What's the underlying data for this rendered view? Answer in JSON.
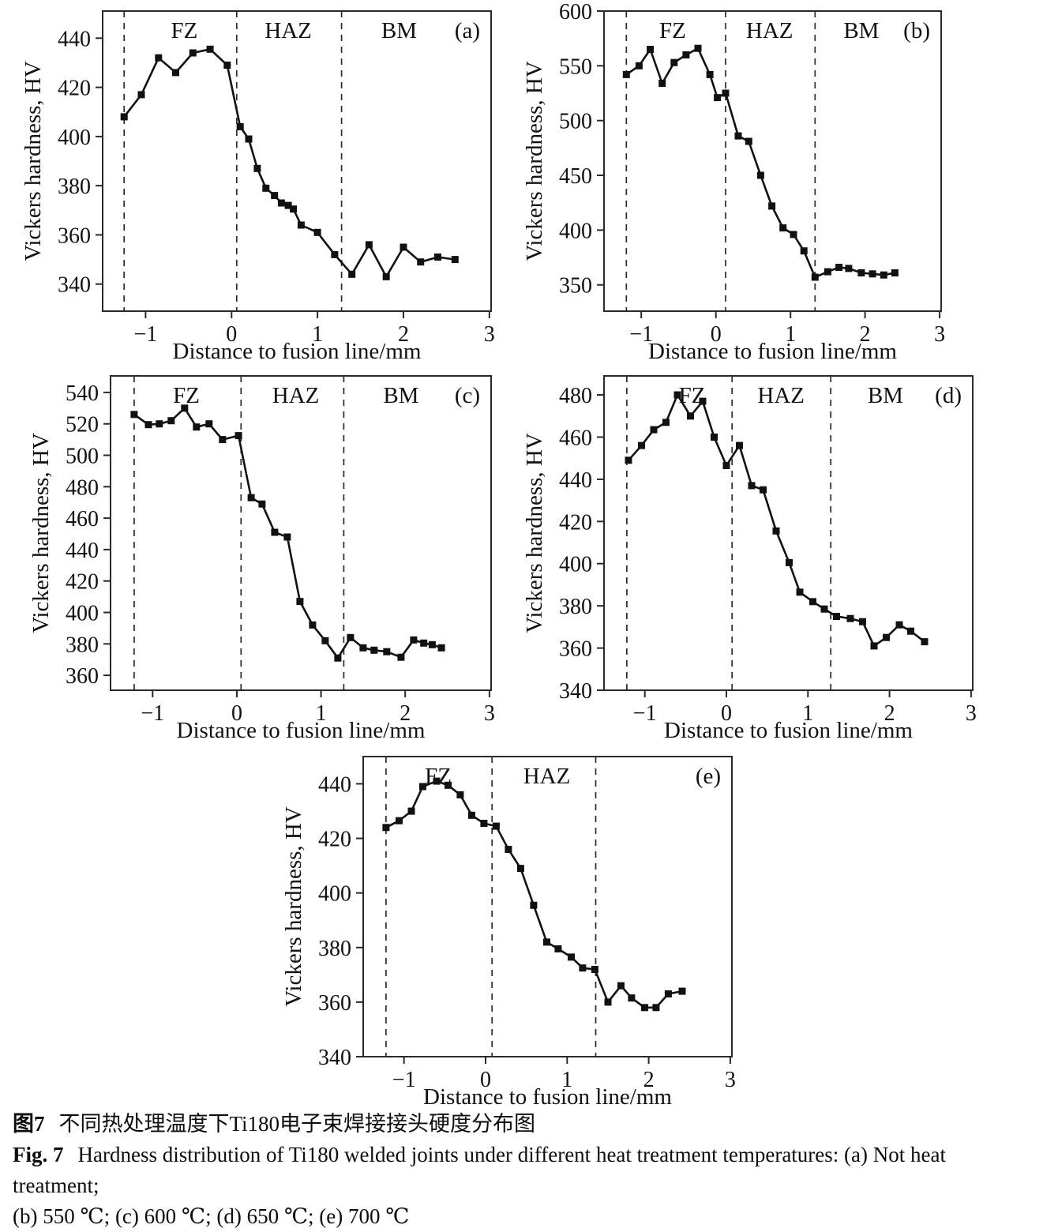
{
  "caption": {
    "zh_label": "图7",
    "zh_text": "不同热处理温度下Ti180电子束焊接接头硬度分布图",
    "en_label": "Fig. 7",
    "en_text": "Hardness distribution of Ti180 welded joints under different heat treatment temperatures: (a) Not heat treatment;",
    "en_text2": "(b) 550 ℃; (c) 600 ℃; (d) 650 ℃; (e) 700 ℃"
  },
  "styles": {
    "line_color": "#111111",
    "axis_color": "#2a2a2a",
    "dash_color": "#2a2a2a"
  },
  "chart_data": [
    {
      "type": "line",
      "panel": "(a)",
      "xlabel": "Distance to fusion line/mm",
      "ylabel": "Vickers hardness, HV",
      "xlim": [
        -1.5,
        3.02
      ],
      "ylim": [
        329,
        451
      ],
      "xticks": [
        -1,
        0,
        1,
        2,
        3
      ],
      "yticks": [
        340,
        360,
        380,
        400,
        420,
        440
      ],
      "zone_lines": [
        -1.25,
        0.06,
        1.28
      ],
      "zones": [
        {
          "label": "FZ",
          "x": -0.55
        },
        {
          "label": "HAZ",
          "x": 0.66
        },
        {
          "label": "BM",
          "x": 1.95
        }
      ],
      "x": [
        -1.25,
        -1.05,
        -0.85,
        -0.65,
        -0.45,
        -0.25,
        -0.05,
        0.1,
        0.2,
        0.3,
        0.4,
        0.5,
        0.58,
        0.66,
        0.72,
        0.81,
        1.0,
        1.2,
        1.4,
        1.6,
        1.8,
        2.0,
        2.2,
        2.4,
        2.6
      ],
      "y": [
        408,
        417,
        432,
        426,
        434,
        435.5,
        429,
        404,
        399,
        387,
        379,
        376,
        373,
        372,
        370.5,
        364,
        361,
        352,
        344,
        356,
        343,
        355,
        349,
        351,
        350
      ]
    },
    {
      "type": "line",
      "panel": "(b)",
      "xlabel": "Distance to fusion line/mm",
      "ylabel": "Vickers hardness, HV",
      "xlim": [
        -1.5,
        3.02
      ],
      "ylim": [
        326,
        600
      ],
      "xticks": [
        -1,
        0,
        1,
        2,
        3
      ],
      "yticks": [
        350,
        400,
        450,
        500,
        550,
        600
      ],
      "zone_lines": [
        -1.2,
        0.13,
        1.33
      ],
      "zones": [
        {
          "label": "FZ",
          "x": -0.58
        },
        {
          "label": "HAZ",
          "x": 0.72
        },
        {
          "label": "BM",
          "x": 1.95
        }
      ],
      "x": [
        -1.2,
        -1.03,
        -0.88,
        -0.72,
        -0.56,
        -0.4,
        -0.24,
        -0.08,
        0.02,
        0.13,
        0.3,
        0.44,
        0.6,
        0.75,
        0.9,
        1.04,
        1.18,
        1.33,
        1.5,
        1.65,
        1.78,
        1.95,
        2.1,
        2.25,
        2.4
      ],
      "y": [
        542,
        550,
        565,
        534,
        553,
        560,
        566,
        542,
        521,
        525,
        486,
        481,
        450,
        422,
        402,
        396,
        381,
        357,
        362,
        366,
        365,
        361,
        360,
        359,
        361
      ]
    },
    {
      "type": "line",
      "panel": "(c)",
      "xlabel": "Distance to fusion line/mm",
      "ylabel": "Vickers hardness, HV",
      "xlim": [
        -1.5,
        3.02
      ],
      "ylim": [
        350.5,
        550.5
      ],
      "xticks": [
        -1,
        0,
        1,
        2,
        3
      ],
      "yticks": [
        360,
        380,
        400,
        420,
        440,
        460,
        480,
        500,
        520,
        540
      ],
      "zone_lines": [
        -1.22,
        0.05,
        1.27
      ],
      "zones": [
        {
          "label": "FZ",
          "x": -0.6
        },
        {
          "label": "HAZ",
          "x": 0.7
        },
        {
          "label": "BM",
          "x": 1.95
        }
      ],
      "x": [
        -1.22,
        -1.05,
        -0.92,
        -0.78,
        -0.62,
        -0.48,
        -0.33,
        -0.17,
        0.02,
        0.17,
        0.3,
        0.45,
        0.6,
        0.75,
        0.9,
        1.05,
        1.2,
        1.35,
        1.5,
        1.63,
        1.78,
        1.95,
        2.1,
        2.22,
        2.32,
        2.43
      ],
      "y": [
        526,
        519.5,
        520,
        522,
        530,
        518,
        520,
        510,
        512.5,
        473,
        469,
        451,
        448,
        407,
        392,
        382,
        371,
        384,
        377.5,
        376,
        375,
        371.5,
        382.5,
        380.5,
        379.5,
        377.5
      ]
    },
    {
      "type": "line",
      "panel": "(d)",
      "xlabel": "Distance to fusion line/mm",
      "ylabel": "Vickers hardness, HV",
      "xlim": [
        -1.5,
        3.02
      ],
      "ylim": [
        340,
        489
      ],
      "xticks": [
        -1,
        0,
        1,
        2,
        3
      ],
      "yticks": [
        340,
        360,
        380,
        400,
        420,
        440,
        460,
        480
      ],
      "zone_lines": [
        -1.22,
        0.07,
        1.28
      ],
      "zones": [
        {
          "label": "FZ",
          "x": -0.42
        },
        {
          "label": "HAZ",
          "x": 0.67
        },
        {
          "label": "BM",
          "x": 1.95
        }
      ],
      "x": [
        -1.2,
        -1.04,
        -0.89,
        -0.74,
        -0.6,
        -0.44,
        -0.29,
        -0.15,
        0.0,
        0.16,
        0.31,
        0.45,
        0.61,
        0.77,
        0.9,
        1.06,
        1.2,
        1.35,
        1.52,
        1.67,
        1.81,
        1.96,
        2.12,
        2.26,
        2.43
      ],
      "y": [
        449,
        456,
        463.5,
        467,
        480,
        470,
        477,
        460,
        446.5,
        456,
        437,
        435,
        415.5,
        400.5,
        386.5,
        382,
        378.5,
        375,
        374,
        372.5,
        361,
        365,
        371,
        368,
        363
      ]
    },
    {
      "type": "line",
      "panel": "(e)",
      "xlabel": "Distance to fusion line/mm",
      "ylabel": "Vickers hardness, HV",
      "xlim": [
        -1.5,
        3.02
      ],
      "ylim": [
        340,
        450
      ],
      "xticks": [
        -1,
        0,
        1,
        2,
        3
      ],
      "yticks": [
        340,
        360,
        380,
        400,
        420,
        440
      ],
      "zone_lines": [
        -1.22,
        0.08,
        1.35
      ],
      "zones": [
        {
          "label": "FZ",
          "x": -0.58
        },
        {
          "label": "HAZ",
          "x": 0.75
        }
      ],
      "x": [
        -1.22,
        -1.06,
        -0.91,
        -0.77,
        -0.6,
        -0.46,
        -0.31,
        -0.17,
        -0.02,
        0.13,
        0.28,
        0.43,
        0.59,
        0.75,
        0.89,
        1.05,
        1.19,
        1.34,
        1.5,
        1.66,
        1.79,
        1.95,
        2.09,
        2.24,
        2.41
      ],
      "y": [
        424,
        426.5,
        430,
        439,
        441,
        439.5,
        436,
        428.5,
        425.5,
        424.5,
        416,
        409,
        395.5,
        382,
        379.5,
        376.5,
        372.5,
        372,
        360,
        366,
        361.5,
        358,
        358,
        363,
        364
      ]
    }
  ]
}
